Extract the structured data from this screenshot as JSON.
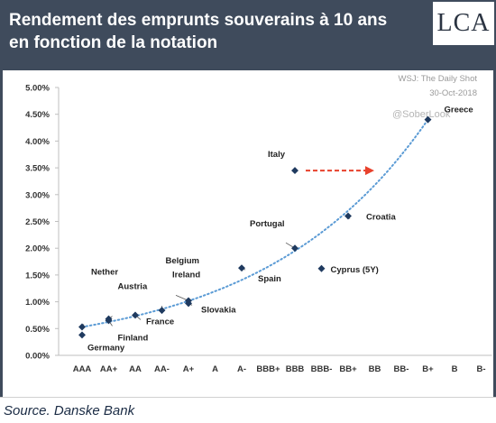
{
  "header": {
    "title": "Rendement des emprunts souverains à 10 ans en fonction de la notation",
    "logo_text": "LCA"
  },
  "watermark": {
    "line1": "WSJ: The Daily Shot",
    "line2": "30-Oct-2018",
    "line3": "@SoberLook"
  },
  "footer": {
    "source": "Source. Danske Bank"
  },
  "colors": {
    "background": "#3f4b5c",
    "points": "#1f3a5f",
    "trend": "#5b9bd5",
    "arrow": "#e8412c"
  },
  "chart_data": {
    "type": "scatter",
    "categories": [
      "AAA",
      "AA+",
      "AA",
      "AA-",
      "A+",
      "A",
      "A-",
      "BBB+",
      "BBB",
      "BBB-",
      "BB+",
      "BB",
      "BB-",
      "B+",
      "B",
      "B-"
    ],
    "ylim": [
      0,
      5
    ],
    "ytick_labels": [
      "0.00%",
      "0.50%",
      "1.00%",
      "1.50%",
      "2.00%",
      "2.50%",
      "3.00%",
      "3.50%",
      "4.00%",
      "4.50%",
      "5.00%"
    ],
    "grid": false,
    "trendline": "exponential, dotted",
    "points": [
      {
        "label": "Nether",
        "rating": "AAA",
        "yield": 0.53
      },
      {
        "label": "Germany",
        "rating": "AAA",
        "yield": 0.38
      },
      {
        "label": "Austria",
        "rating": "AA+",
        "yield": 0.68
      },
      {
        "label": "Finland",
        "rating": "AA+",
        "yield": 0.65
      },
      {
        "label": "France",
        "rating": "AA",
        "yield": 0.75
      },
      {
        "label": "Belgium",
        "rating": "AA-",
        "yield": 0.84
      },
      {
        "label": "Ireland",
        "rating": "A+",
        "yield": 1.02
      },
      {
        "label": "Slovakia",
        "rating": "A+",
        "yield": 0.97
      },
      {
        "label": "Spain",
        "rating": "A-",
        "yield": 1.63
      },
      {
        "label": "Portugal",
        "rating": "BBB",
        "yield": 2.0
      },
      {
        "label": "Italy",
        "rating": "BBB",
        "yield": 3.45
      },
      {
        "label": "Cyprus (5Y)",
        "rating": "BBB-",
        "yield": 1.62
      },
      {
        "label": "Croatia",
        "rating": "BB+",
        "yield": 2.6
      },
      {
        "label": "Greece",
        "rating": "B+",
        "yield": 4.4
      }
    ]
  }
}
